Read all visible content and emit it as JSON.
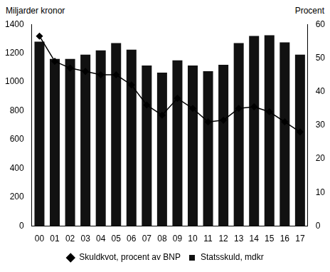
{
  "chart_data": {
    "type": "bar",
    "y_label": "Miljarder kronor",
    "y2_label": "Procent",
    "categories": [
      "00",
      "01",
      "02",
      "03",
      "04",
      "05",
      "06",
      "07",
      "08",
      "09",
      "10",
      "11",
      "12",
      "13",
      "14",
      "15",
      "16",
      "17"
    ],
    "series": [
      {
        "name": "Statsskuld, mdkr",
        "type": "bar",
        "color": "#111111",
        "values": [
          1280,
          1160,
          1160,
          1190,
          1220,
          1270,
          1225,
          1115,
          1065,
          1150,
          1115,
          1075,
          1120,
          1270,
          1320,
          1325,
          1275,
          1190
        ]
      },
      {
        "name": "Skuldkvot, procent av BNP",
        "type": "line",
        "color": "#000000",
        "marker": "diamond",
        "axis": "y2",
        "values": [
          56.5,
          49,
          47,
          46,
          45,
          45,
          42,
          36,
          33,
          38,
          35,
          31,
          31.5,
          35,
          35.5,
          34,
          31,
          28
        ]
      }
    ],
    "ylim": [
      0,
      1400
    ],
    "yticks": [
      0,
      200,
      400,
      600,
      800,
      1000,
      1200,
      1400
    ],
    "y2lim": [
      0,
      60
    ],
    "y2ticks": [
      0,
      10,
      20,
      30,
      40,
      50,
      60
    ],
    "grid": false,
    "legend": "bottom"
  }
}
